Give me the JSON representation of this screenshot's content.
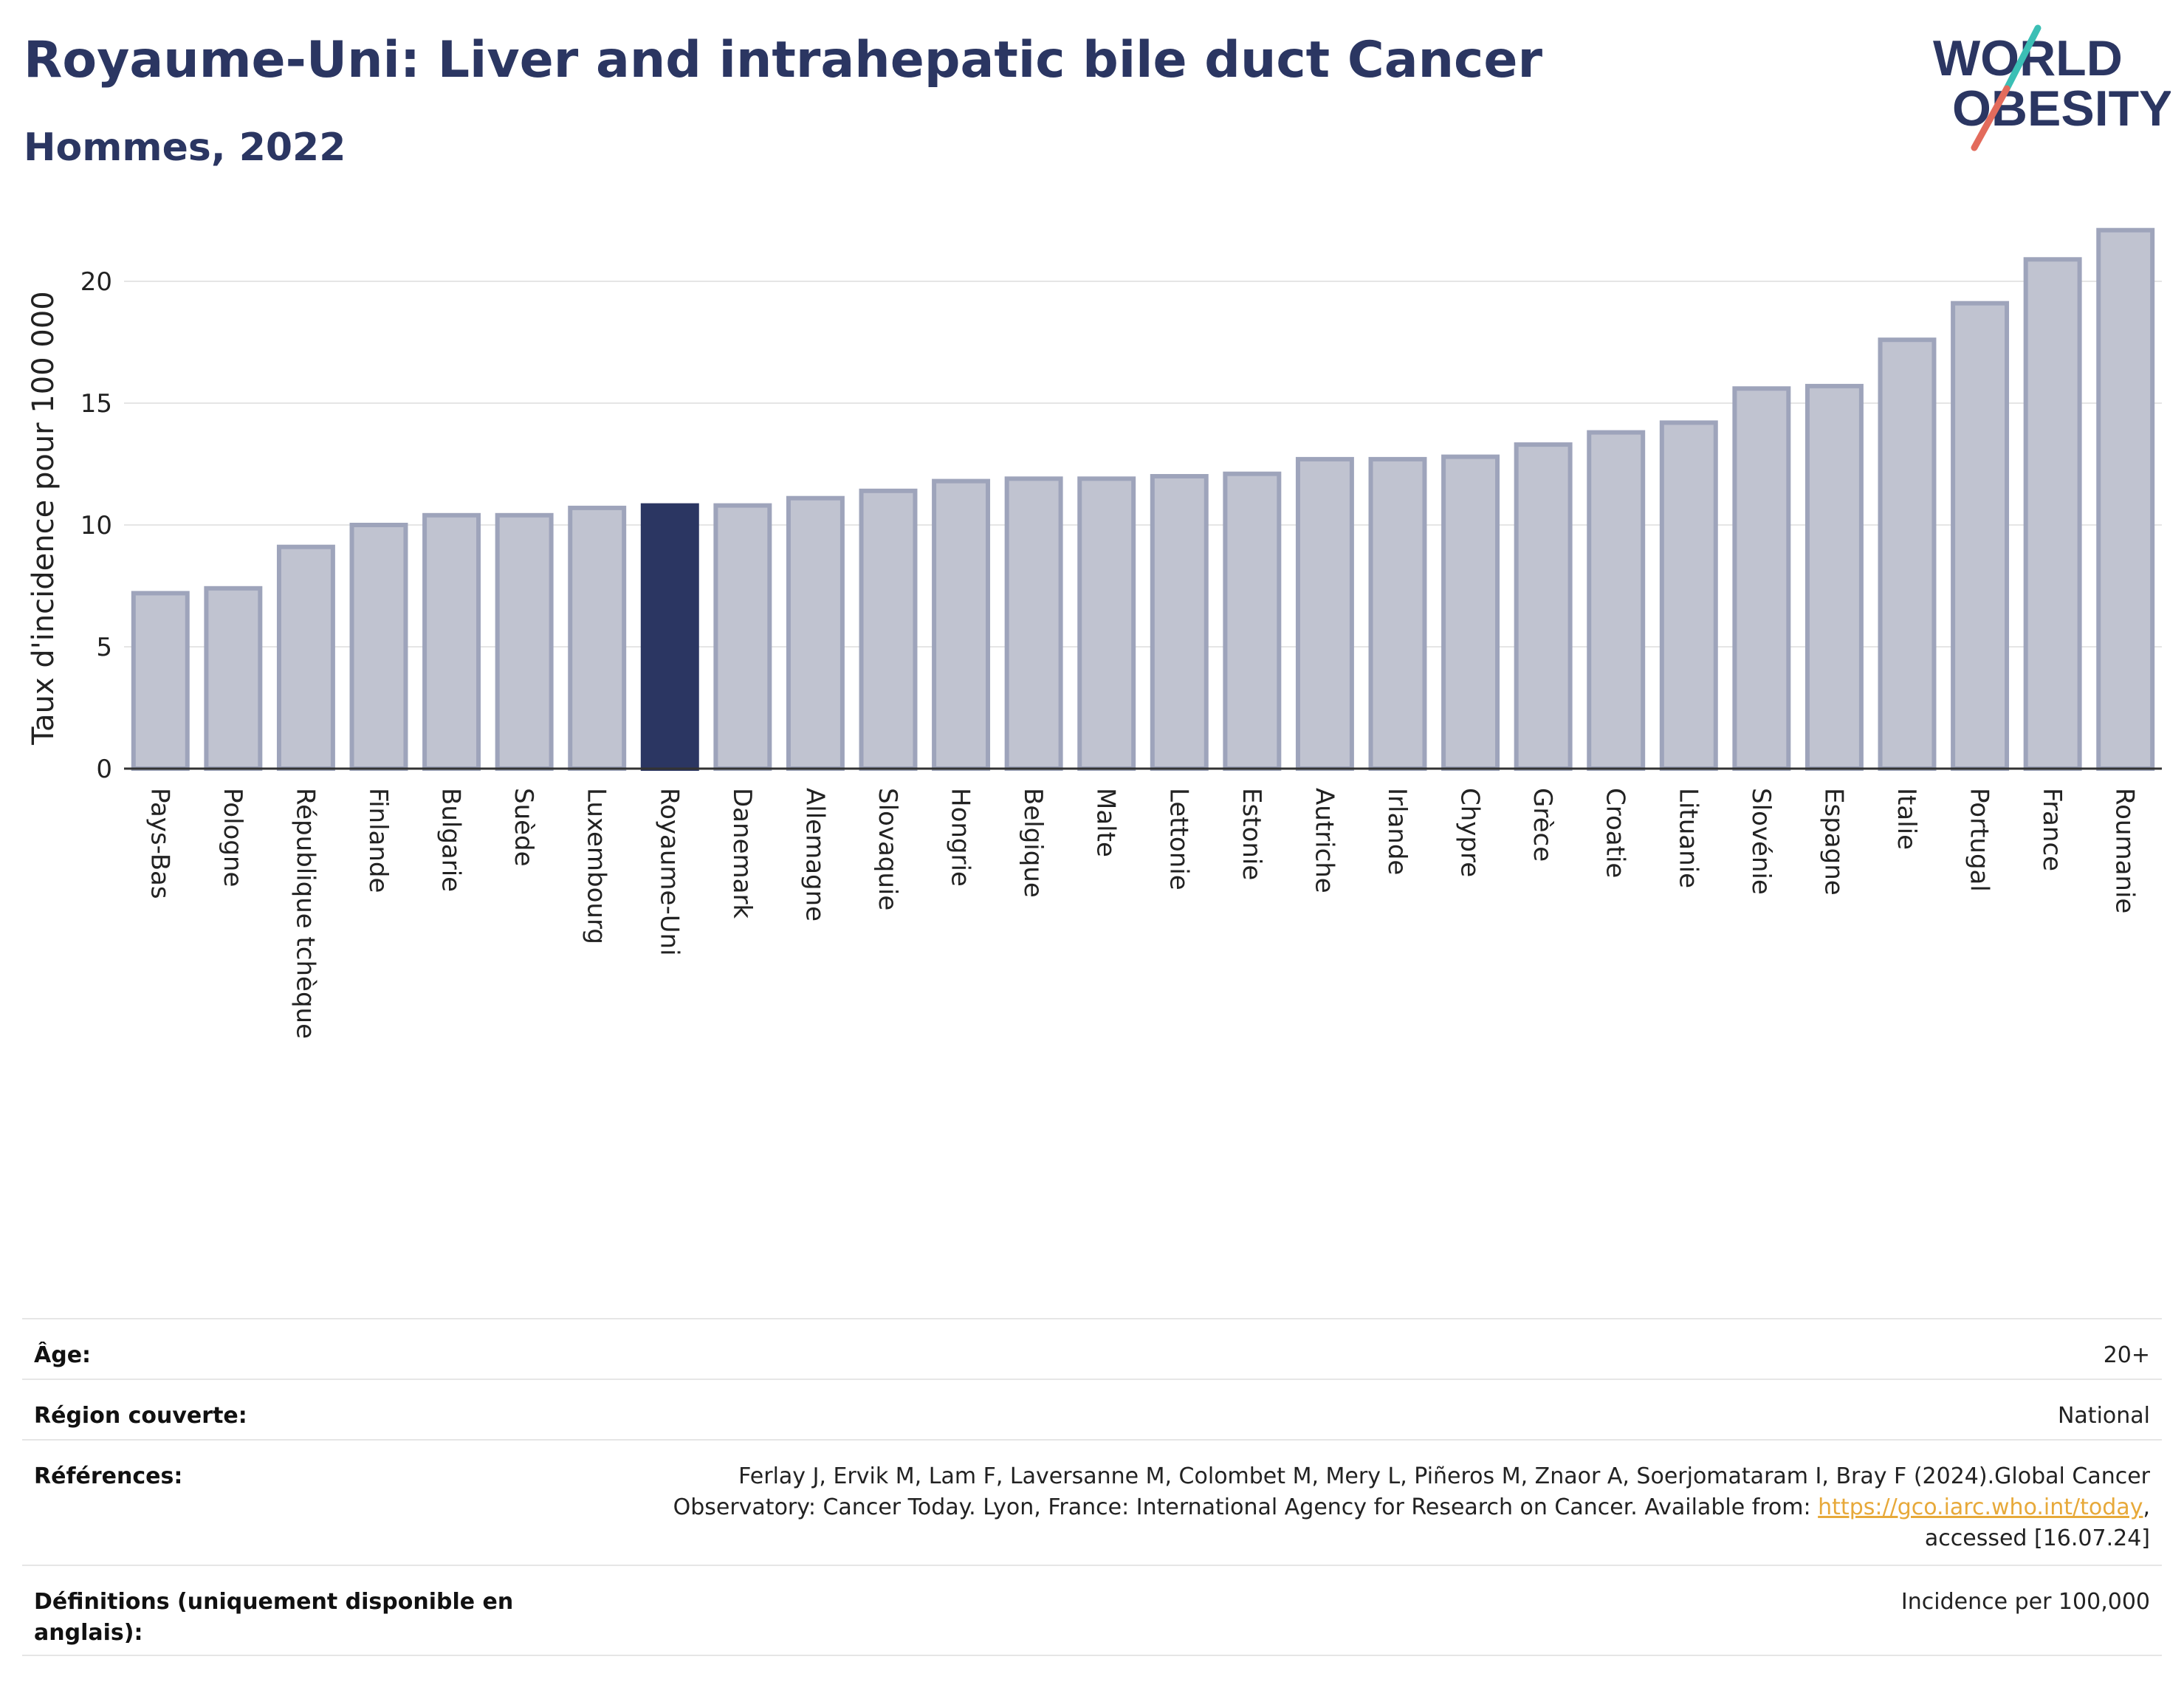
{
  "header": {
    "title": "Royaume-Uni: Liver and intrahepatic bile duct Cancer",
    "subtitle": "Hommes, 2022"
  },
  "logo": {
    "line1": "WORLD",
    "line2": "OBESITY",
    "text_color": "#2b3662",
    "slash_top_color": "#3bbfb5",
    "slash_bottom_color": "#e36b5c"
  },
  "chart_data": {
    "type": "bar",
    "title": "Royaume-Uni: Liver and intrahepatic bile duct Cancer",
    "subtitle": "Hommes, 2022",
    "ylabel": "Taux d'incidence pour 100 000",
    "xlabel": "",
    "ylim": [
      0,
      23
    ],
    "yticks": [
      0,
      5,
      10,
      15,
      20
    ],
    "grid": true,
    "highlight": "Royaume-Uni",
    "colors": {
      "bar": "#c0c3d0",
      "bar_border": "#9ea4bb",
      "highlight": "#2b3662"
    },
    "categories": [
      "Pays-Bas",
      "Pologne",
      "République tchèque",
      "Finlande",
      "Bulgarie",
      "Suède",
      "Luxembourg",
      "Royaume-Uni",
      "Danemark",
      "Allemagne",
      "Slovaquie",
      "Hongrie",
      "Belgique",
      "Malte",
      "Lettonie",
      "Estonie",
      "Autriche",
      "Irlande",
      "Chypre",
      "Grèce",
      "Croatie",
      "Lituanie",
      "Slovénie",
      "Espagne",
      "Italie",
      "Portugal",
      "France",
      "Roumanie"
    ],
    "values": [
      7.2,
      7.4,
      9.1,
      10.0,
      10.4,
      10.4,
      10.7,
      10.8,
      10.8,
      11.1,
      11.4,
      11.8,
      11.9,
      11.9,
      12.0,
      12.1,
      12.7,
      12.7,
      12.8,
      13.3,
      13.8,
      14.2,
      15.6,
      15.7,
      17.6,
      19.1,
      20.9,
      22.1
    ]
  },
  "meta": {
    "age_label": "Âge:",
    "age_value": "20+",
    "region_label": "Région couverte:",
    "region_value": "National",
    "refs_label": "Références:",
    "refs_text_line1": "Ferlay J, Ervik M, Lam F, Laversanne M, Colombet M, Mery L, Piñeros M, Znaor A, Soerjomataram I, Bray F (2024).Global Cancer",
    "refs_text_line2": "Observatory: Cancer Today. Lyon, France: International Agency for Research on Cancer. Available from: ",
    "refs_link": "https://gco.iarc.who.int/today",
    "refs_text_line2_end": ",",
    "refs_text_line3": "accessed [16.07.24]",
    "defs_label": "Définitions (uniquement disponible en anglais):",
    "defs_value": "Incidence per 100,000"
  }
}
